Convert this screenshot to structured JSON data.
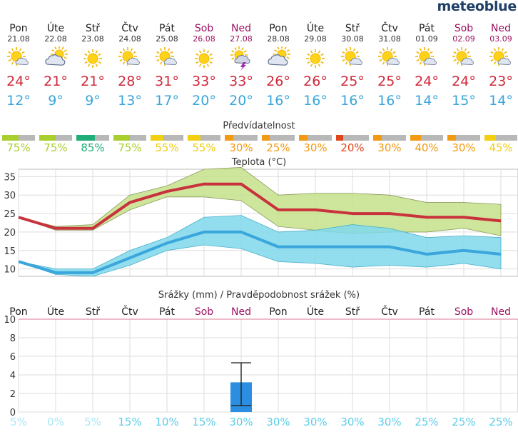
{
  "brand": "meteoblue",
  "days": [
    {
      "name": "Pon",
      "date": "21.08",
      "weekend": false,
      "icon": "sun-cloud-icon",
      "tmax": "24°",
      "tmin": "12°",
      "predictability": "75%",
      "pred_value": 75,
      "pred_color": "#a9cf2f"
    },
    {
      "name": "Úte",
      "date": "22.08",
      "weekend": false,
      "icon": "cloud-sun-icon",
      "tmax": "21°",
      "tmin": "9°",
      "predictability": "75%",
      "pred_value": 75,
      "pred_color": "#a9cf2f"
    },
    {
      "name": "Stř",
      "date": "23.08",
      "weekend": false,
      "icon": "sun-icon",
      "tmax": "21°",
      "tmin": "9°",
      "predictability": "85%",
      "pred_value": 85,
      "pred_color": "#1fae7a"
    },
    {
      "name": "Čtv",
      "date": "24.08",
      "weekend": false,
      "icon": "sun-cloud-icon",
      "tmax": "28°",
      "tmin": "13°",
      "predictability": "75%",
      "pred_value": 75,
      "pred_color": "#a9cf2f"
    },
    {
      "name": "Pát",
      "date": "25.08",
      "weekend": false,
      "icon": "sun-cloud-icon",
      "tmax": "31°",
      "tmin": "17°",
      "predictability": "55%",
      "pred_value": 55,
      "pred_color": "#f2cf10"
    },
    {
      "name": "Sob",
      "date": "26.08",
      "weekend": true,
      "icon": "sun-icon",
      "tmax": "33°",
      "tmin": "20°",
      "predictability": "55%",
      "pred_value": 55,
      "pred_color": "#f2cf10"
    },
    {
      "name": "Ned",
      "date": "27.08",
      "weekend": true,
      "icon": "thunderstorm-icon",
      "tmax": "33°",
      "tmin": "20°",
      "predictability": "30%",
      "pred_value": 30,
      "pred_color": "#f39a12"
    },
    {
      "name": "Pon",
      "date": "28.08",
      "weekend": false,
      "icon": "cloud-sun-icon",
      "tmax": "26°",
      "tmin": "16°",
      "predictability": "25%",
      "pred_value": 25,
      "pred_color": "#f39a12"
    },
    {
      "name": "Úte",
      "date": "29.08",
      "weekend": false,
      "icon": "sun-icon",
      "tmax": "26°",
      "tmin": "16°",
      "predictability": "30%",
      "pred_value": 30,
      "pred_color": "#f39a12"
    },
    {
      "name": "Stř",
      "date": "30.08",
      "weekend": false,
      "icon": "sun-cloud-icon",
      "tmax": "25°",
      "tmin": "16°",
      "predictability": "20%",
      "pred_value": 20,
      "pred_color": "#e0461c"
    },
    {
      "name": "Čtv",
      "date": "31.08",
      "weekend": false,
      "icon": "sun-cloud-icon",
      "tmax": "25°",
      "tmin": "16°",
      "predictability": "30%",
      "pred_value": 30,
      "pred_color": "#f39a12"
    },
    {
      "name": "Pát",
      "date": "01.09",
      "weekend": false,
      "icon": "sun-cloud-icon",
      "tmax": "24°",
      "tmin": "14°",
      "predictability": "40%",
      "pred_value": 40,
      "pred_color": "#f39a12"
    },
    {
      "name": "Sob",
      "date": "02.09",
      "weekend": true,
      "icon": "sun-cloud-icon",
      "tmax": "24°",
      "tmin": "15°",
      "predictability": "30%",
      "pred_value": 30,
      "pred_color": "#f39a12"
    },
    {
      "name": "Ned",
      "date": "03.09",
      "weekend": true,
      "icon": "sun-cloud-icon",
      "tmax": "23°",
      "tmin": "14°",
      "predictability": "45%",
      "pred_value": 45,
      "pred_color": "#f2cf10"
    }
  ],
  "predictability_title": "Předvídatelnost",
  "temp_title": "Teplota (°C)",
  "precip_title": "Srážky (mm) / Pravděpodobnost srážek (%)",
  "precip_days": [
    "Pon",
    "Úte",
    "Stř",
    "Čtv",
    "Pát",
    "Sob",
    "Ned",
    "Pon",
    "Úte",
    "Stř",
    "Čtv",
    "Pát",
    "Sob",
    "Ned"
  ],
  "precip_probability": [
    "5%",
    "0%",
    "5%",
    "15%",
    "10%",
    "15%",
    "30%",
    "30%",
    "30%",
    "30%",
    "30%",
    "25%",
    "25%",
    "25%"
  ],
  "chart_data": [
    {
      "type": "line",
      "title": "Teplota (°C)",
      "ylim": [
        8,
        37
      ],
      "yticks": [
        10,
        15,
        20,
        25,
        30,
        35
      ],
      "grid": true,
      "categories": [
        "21.08",
        "22.08",
        "23.08",
        "24.08",
        "25.08",
        "26.08",
        "27.08",
        "28.08",
        "29.08",
        "30.08",
        "31.08",
        "01.09",
        "02.09",
        "03.09"
      ],
      "series": [
        {
          "values": [
            24,
            21,
            21,
            28,
            31,
            33,
            33,
            26,
            26,
            25,
            25,
            24,
            24,
            23
          ],
          "color": "#c8323c"
        },
        {
          "values": [
            12,
            9,
            9,
            13,
            17,
            20,
            20,
            16,
            16,
            16,
            16,
            14,
            15,
            14
          ],
          "color": "#3aa6db"
        }
      ],
      "bands": [
        {
          "lower": [
            24,
            20.5,
            20.5,
            26,
            29.5,
            29.5,
            28.5,
            21.5,
            20.5,
            19.5,
            20,
            20,
            21,
            19
          ],
          "upper": [
            24,
            21.5,
            22,
            30,
            32.5,
            37,
            37.5,
            30,
            30.5,
            30.5,
            30,
            28,
            28,
            27.5
          ],
          "color": "#c6e28a"
        },
        {
          "lower": [
            12,
            8.5,
            8,
            11,
            15,
            16.5,
            15.5,
            12,
            11.5,
            10.5,
            11,
            10.5,
            11.5,
            10
          ],
          "upper": [
            12,
            10,
            10,
            15,
            18.5,
            24,
            24.5,
            20,
            20.5,
            22,
            21,
            18.5,
            19,
            18.5
          ],
          "color": "#7fd8ec"
        }
      ]
    },
    {
      "type": "bar",
      "title": "Srážky (mm) / Pravděpodobnost srážek (%)",
      "ylim": [
        0,
        10
      ],
      "yticks": [
        0,
        2,
        4,
        6,
        8,
        10
      ],
      "grid": true,
      "categories": [
        "Pon",
        "Úte",
        "Stř",
        "Čtv",
        "Pát",
        "Sob",
        "Ned",
        "Pon",
        "Úte",
        "Stř",
        "Čtv",
        "Pát",
        "Sob",
        "Ned"
      ],
      "values": [
        0,
        0,
        0,
        0,
        0,
        0,
        3.2,
        0,
        0,
        0,
        0,
        0,
        0,
        0
      ],
      "error_bars": [
        {
          "index": 6,
          "low": 0.7,
          "high": 5.3
        }
      ],
      "color": "#2b8ee0"
    }
  ]
}
